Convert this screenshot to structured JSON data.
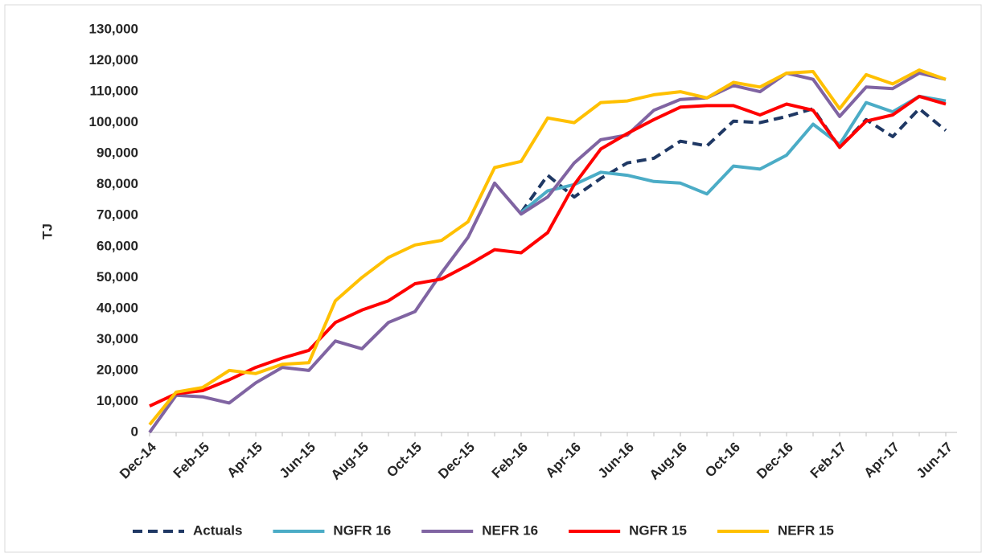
{
  "chart_data": {
    "type": "line",
    "y_label": "TJ",
    "categories": [
      "Dec-14",
      null,
      "Feb-15",
      null,
      "Apr-15",
      null,
      "Jun-15",
      null,
      "Aug-15",
      null,
      "Oct-15",
      null,
      "Dec-15",
      null,
      "Feb-16",
      null,
      "Apr-16",
      null,
      "Jun-16",
      null,
      "Aug-16",
      null,
      "Oct-16",
      null,
      "Dec-16",
      null,
      "Feb-17",
      null,
      "Apr-17",
      null,
      "Jun-17"
    ],
    "ylim": [
      0,
      130000
    ],
    "yticks": [
      0,
      {
        "value": 10000,
        "label": "10,000"
      },
      {
        "value": 20000,
        "label": "20,000"
      },
      {
        "value": 30000,
        "label": "30,000"
      },
      {
        "value": 40000,
        "label": "40,000"
      },
      {
        "value": 50000,
        "label": "50,000"
      },
      {
        "value": 60000,
        "label": "60,000"
      },
      {
        "value": 70000,
        "label": "70,000"
      },
      {
        "value": 80000,
        "label": "80,000"
      },
      {
        "value": 90000,
        "label": "90,000"
      },
      {
        "value": 100000,
        "label": "100,000"
      },
      {
        "value": 110000,
        "label": "110,000"
      },
      {
        "value": 120000,
        "label": "120,000"
      },
      {
        "value": 130000,
        "label": "130,000"
      }
    ],
    "grid": false,
    "legend": "bottom",
    "series": [
      {
        "name": "Actuals",
        "color": "#1f3864",
        "style": "dashed",
        "values": [
          null,
          null,
          null,
          null,
          null,
          null,
          null,
          null,
          null,
          null,
          null,
          null,
          null,
          null,
          71000,
          83000,
          76000,
          82000,
          87000,
          88500,
          94000,
          92500,
          100500,
          100000,
          102000,
          104500,
          92000,
          101000,
          95500,
          104500,
          97500
        ]
      },
      {
        "name": "NGFR 16",
        "color": "#4bacc6",
        "style": "solid",
        "values": [
          null,
          null,
          null,
          null,
          null,
          null,
          null,
          null,
          null,
          null,
          null,
          null,
          null,
          null,
          71000,
          78000,
          80000,
          84000,
          83000,
          81000,
          80500,
          77000,
          86000,
          85000,
          89500,
          99500,
          93000,
          106500,
          103500,
          108500,
          107000
        ]
      },
      {
        "name": "NEFR 16",
        "color": "#8064a2",
        "style": "solid",
        "values": [
          0,
          12000,
          11500,
          9500,
          16000,
          21000,
          20000,
          29500,
          27000,
          35500,
          39000,
          51500,
          63000,
          80500,
          70500,
          76000,
          87000,
          94500,
          96000,
          104000,
          107500,
          108000,
          112000,
          110000,
          116000,
          114000,
          102000,
          111500,
          111000,
          116000,
          114000
        ]
      },
      {
        "name": "NGFR 15",
        "color": "#ff0000",
        "style": "solid",
        "values": [
          8500,
          12500,
          13500,
          17000,
          21000,
          24000,
          26500,
          35500,
          39500,
          42500,
          48000,
          49500,
          54000,
          59000,
          58000,
          64500,
          80000,
          91500,
          96500,
          101000,
          105000,
          105500,
          105500,
          102500,
          106000,
          104000,
          92000,
          100500,
          102500,
          108500,
          106000
        ]
      },
      {
        "name": "NEFR 15",
        "color": "#ffc000",
        "style": "solid",
        "values": [
          2500,
          13000,
          14500,
          20000,
          19000,
          22000,
          22500,
          42500,
          50000,
          56500,
          60500,
          62000,
          68000,
          85500,
          87500,
          101500,
          100000,
          106500,
          107000,
          109000,
          110000,
          108000,
          113000,
          111500,
          116000,
          116500,
          104500,
          115500,
          112500,
          117000,
          114000
        ]
      }
    ]
  }
}
